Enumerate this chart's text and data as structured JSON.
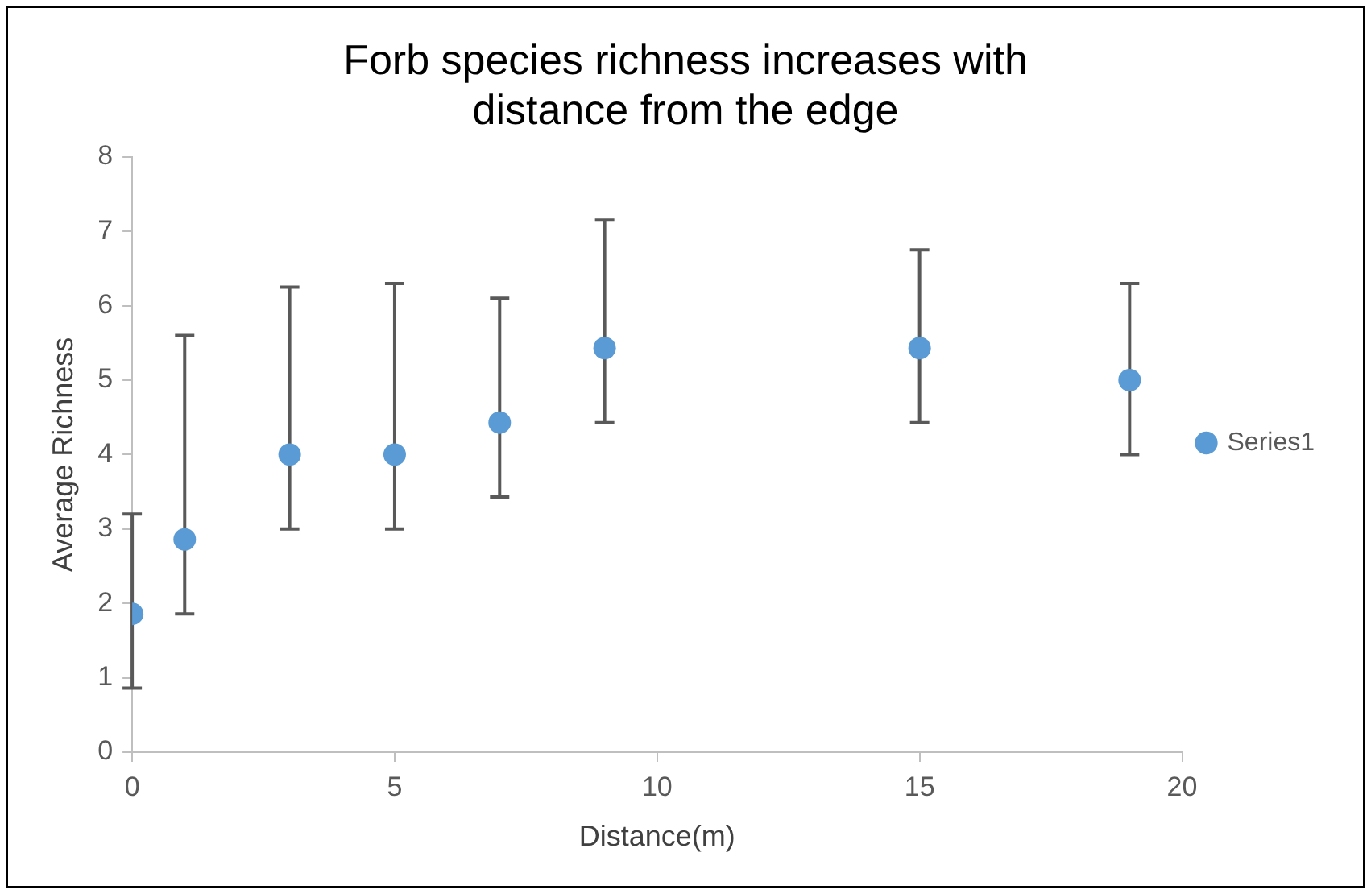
{
  "chart_data": {
    "type": "scatter",
    "title": "Forb species richness increases with distance from the edge",
    "xlabel": "Distance(m)",
    "ylabel": "Average Richness",
    "x": [
      0,
      1,
      3,
      5,
      7,
      9,
      15,
      19
    ],
    "series": [
      {
        "name": "Series1",
        "color": "#5b9bd5",
        "values": [
          1.86,
          2.86,
          4,
          4,
          4.43,
          5.43,
          5.43,
          5
        ],
        "errors": [
          [
            0.86,
            3.2
          ],
          [
            1.86,
            5.6
          ],
          [
            3,
            6.25
          ],
          [
            3,
            6.3
          ],
          [
            3.43,
            6.1
          ],
          [
            4.43,
            7.15
          ],
          [
            4.43,
            6.75
          ],
          [
            4,
            6.3
          ]
        ]
      }
    ],
    "xlim": [
      0,
      20
    ],
    "xticks": [
      0,
      5,
      10,
      15,
      20
    ],
    "ylim": [
      0,
      8
    ],
    "yticks": [
      0,
      1,
      2,
      3,
      4,
      5,
      6,
      7,
      8
    ],
    "grid": false,
    "legend": "right",
    "marker": "circle"
  }
}
